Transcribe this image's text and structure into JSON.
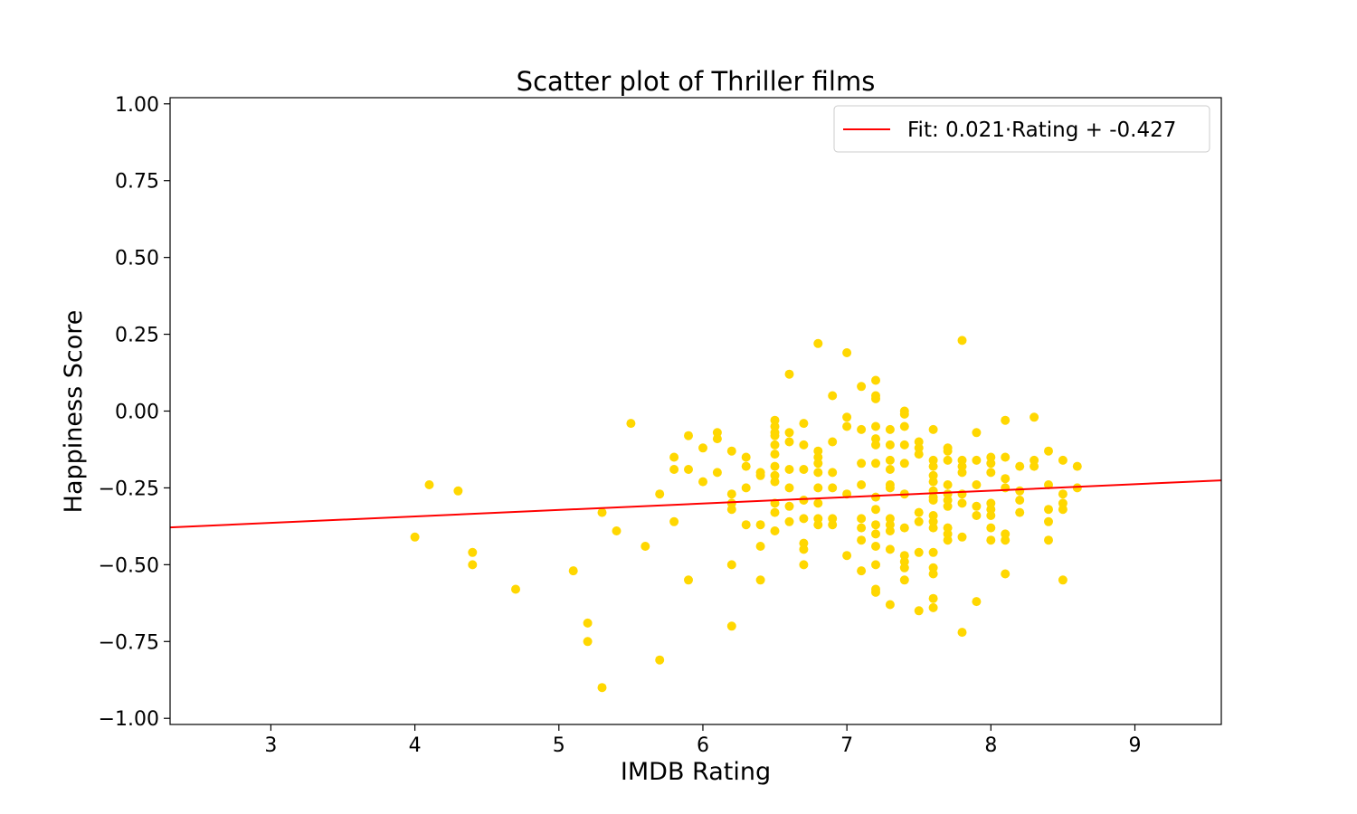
{
  "chart_data": {
    "type": "scatter",
    "title": "Scatter plot of Thriller films",
    "xlabel": "IMDB Rating",
    "ylabel": "Happiness Score",
    "xlim": [
      2.3,
      9.6
    ],
    "ylim": [
      -1.02,
      1.02
    ],
    "xticks": [
      3,
      4,
      5,
      6,
      7,
      8,
      9
    ],
    "xtick_labels": [
      "3",
      "4",
      "5",
      "6",
      "7",
      "8",
      "9"
    ],
    "yticks": [
      1.0,
      0.75,
      0.5,
      0.25,
      0.0,
      -0.25,
      -0.5,
      -0.75,
      -1.0
    ],
    "ytick_labels": [
      "1.00",
      "0.75",
      "0.50",
      "0.25",
      "0.00",
      "−0.25",
      "−0.50",
      "−0.75",
      "−1.00"
    ],
    "grid": false,
    "legend_position": "top-right",
    "colors": {
      "points": "#FFD700",
      "fit_line": "#FF0000"
    },
    "fit_line": {
      "label": "Fit: 0.021·Rating + -0.427",
      "slope": 0.021,
      "intercept": -0.427
    },
    "points": [
      [
        4.0,
        -0.41
      ],
      [
        4.1,
        -0.24
      ],
      [
        4.3,
        -0.26
      ],
      [
        4.4,
        -0.46
      ],
      [
        4.4,
        -0.5
      ],
      [
        4.7,
        -0.58
      ],
      [
        5.1,
        -0.52
      ],
      [
        5.2,
        -0.69
      ],
      [
        5.2,
        -0.75
      ],
      [
        5.3,
        -0.33
      ],
      [
        5.3,
        -0.9
      ],
      [
        5.4,
        -0.39
      ],
      [
        5.5,
        -0.04
      ],
      [
        5.6,
        -0.44
      ],
      [
        5.7,
        -0.27
      ],
      [
        5.7,
        -0.81
      ],
      [
        5.8,
        -0.15
      ],
      [
        5.8,
        -0.19
      ],
      [
        5.8,
        -0.36
      ],
      [
        5.9,
        -0.08
      ],
      [
        5.9,
        -0.19
      ],
      [
        5.9,
        -0.55
      ],
      [
        6.0,
        -0.12
      ],
      [
        6.0,
        -0.23
      ],
      [
        6.1,
        -0.07
      ],
      [
        6.1,
        -0.09
      ],
      [
        6.1,
        -0.2
      ],
      [
        6.2,
        -0.13
      ],
      [
        6.2,
        -0.27
      ],
      [
        6.2,
        -0.3
      ],
      [
        6.2,
        -0.32
      ],
      [
        6.2,
        -0.5
      ],
      [
        6.2,
        -0.7
      ],
      [
        6.3,
        -0.15
      ],
      [
        6.3,
        -0.18
      ],
      [
        6.3,
        -0.25
      ],
      [
        6.3,
        -0.37
      ],
      [
        6.4,
        -0.2
      ],
      [
        6.4,
        -0.21
      ],
      [
        6.4,
        -0.37
      ],
      [
        6.4,
        -0.44
      ],
      [
        6.4,
        -0.55
      ],
      [
        6.5,
        -0.03
      ],
      [
        6.5,
        -0.05
      ],
      [
        6.5,
        -0.07
      ],
      [
        6.5,
        -0.08
      ],
      [
        6.5,
        -0.11
      ],
      [
        6.5,
        -0.14
      ],
      [
        6.5,
        -0.18
      ],
      [
        6.5,
        -0.21
      ],
      [
        6.5,
        -0.23
      ],
      [
        6.5,
        -0.3
      ],
      [
        6.5,
        -0.33
      ],
      [
        6.5,
        -0.39
      ],
      [
        6.6,
        0.12
      ],
      [
        6.6,
        -0.07
      ],
      [
        6.6,
        -0.1
      ],
      [
        6.6,
        -0.19
      ],
      [
        6.6,
        -0.25
      ],
      [
        6.6,
        -0.31
      ],
      [
        6.6,
        -0.36
      ],
      [
        6.7,
        -0.04
      ],
      [
        6.7,
        -0.11
      ],
      [
        6.7,
        -0.19
      ],
      [
        6.7,
        -0.29
      ],
      [
        6.7,
        -0.35
      ],
      [
        6.7,
        -0.43
      ],
      [
        6.7,
        -0.45
      ],
      [
        6.7,
        -0.5
      ],
      [
        6.8,
        0.22
      ],
      [
        6.8,
        -0.13
      ],
      [
        6.8,
        -0.15
      ],
      [
        6.8,
        -0.17
      ],
      [
        6.8,
        -0.2
      ],
      [
        6.8,
        -0.25
      ],
      [
        6.8,
        -0.3
      ],
      [
        6.8,
        -0.35
      ],
      [
        6.8,
        -0.37
      ],
      [
        6.9,
        0.05
      ],
      [
        6.9,
        -0.1
      ],
      [
        6.9,
        -0.2
      ],
      [
        6.9,
        -0.25
      ],
      [
        6.9,
        -0.35
      ],
      [
        6.9,
        -0.37
      ],
      [
        7.0,
        0.19
      ],
      [
        7.0,
        -0.02
      ],
      [
        7.0,
        -0.05
      ],
      [
        7.0,
        -0.27
      ],
      [
        7.0,
        -0.47
      ],
      [
        7.1,
        0.08
      ],
      [
        7.1,
        -0.06
      ],
      [
        7.1,
        -0.17
      ],
      [
        7.1,
        -0.24
      ],
      [
        7.1,
        -0.35
      ],
      [
        7.1,
        -0.38
      ],
      [
        7.1,
        -0.42
      ],
      [
        7.1,
        -0.52
      ],
      [
        7.2,
        0.1
      ],
      [
        7.2,
        0.05
      ],
      [
        7.2,
        0.04
      ],
      [
        7.2,
        -0.05
      ],
      [
        7.2,
        -0.09
      ],
      [
        7.2,
        -0.11
      ],
      [
        7.2,
        -0.17
      ],
      [
        7.2,
        -0.28
      ],
      [
        7.2,
        -0.32
      ],
      [
        7.2,
        -0.37
      ],
      [
        7.2,
        -0.4
      ],
      [
        7.2,
        -0.44
      ],
      [
        7.2,
        -0.5
      ],
      [
        7.2,
        -0.58
      ],
      [
        7.2,
        -0.59
      ],
      [
        7.3,
        -0.06
      ],
      [
        7.3,
        -0.11
      ],
      [
        7.3,
        -0.16
      ],
      [
        7.3,
        -0.19
      ],
      [
        7.3,
        -0.24
      ],
      [
        7.3,
        -0.25
      ],
      [
        7.3,
        -0.35
      ],
      [
        7.3,
        -0.37
      ],
      [
        7.3,
        -0.39
      ],
      [
        7.3,
        -0.45
      ],
      [
        7.3,
        -0.63
      ],
      [
        7.4,
        0.0
      ],
      [
        7.4,
        -0.01
      ],
      [
        7.4,
        -0.05
      ],
      [
        7.4,
        -0.11
      ],
      [
        7.4,
        -0.17
      ],
      [
        7.4,
        -0.27
      ],
      [
        7.4,
        -0.38
      ],
      [
        7.4,
        -0.47
      ],
      [
        7.4,
        -0.49
      ],
      [
        7.4,
        -0.51
      ],
      [
        7.4,
        -0.55
      ],
      [
        7.5,
        -0.1
      ],
      [
        7.5,
        -0.12
      ],
      [
        7.5,
        -0.14
      ],
      [
        7.5,
        -0.33
      ],
      [
        7.5,
        -0.36
      ],
      [
        7.5,
        -0.46
      ],
      [
        7.5,
        -0.65
      ],
      [
        7.6,
        -0.06
      ],
      [
        7.6,
        -0.16
      ],
      [
        7.6,
        -0.18
      ],
      [
        7.6,
        -0.21
      ],
      [
        7.6,
        -0.23
      ],
      [
        7.6,
        -0.26
      ],
      [
        7.6,
        -0.28
      ],
      [
        7.6,
        -0.29
      ],
      [
        7.6,
        -0.34
      ],
      [
        7.6,
        -0.36
      ],
      [
        7.6,
        -0.38
      ],
      [
        7.6,
        -0.46
      ],
      [
        7.6,
        -0.51
      ],
      [
        7.6,
        -0.53
      ],
      [
        7.6,
        -0.61
      ],
      [
        7.6,
        -0.64
      ],
      [
        7.7,
        -0.12
      ],
      [
        7.7,
        -0.13
      ],
      [
        7.7,
        -0.16
      ],
      [
        7.7,
        -0.24
      ],
      [
        7.7,
        -0.27
      ],
      [
        7.7,
        -0.29
      ],
      [
        7.7,
        -0.31
      ],
      [
        7.7,
        -0.38
      ],
      [
        7.7,
        -0.4
      ],
      [
        7.7,
        -0.42
      ],
      [
        7.8,
        0.23
      ],
      [
        7.8,
        -0.16
      ],
      [
        7.8,
        -0.18
      ],
      [
        7.8,
        -0.2
      ],
      [
        7.8,
        -0.27
      ],
      [
        7.8,
        -0.3
      ],
      [
        7.8,
        -0.41
      ],
      [
        7.8,
        -0.72
      ],
      [
        7.9,
        -0.07
      ],
      [
        7.9,
        -0.16
      ],
      [
        7.9,
        -0.24
      ],
      [
        7.9,
        -0.31
      ],
      [
        7.9,
        -0.34
      ],
      [
        7.9,
        -0.62
      ],
      [
        8.0,
        -0.15
      ],
      [
        8.0,
        -0.17
      ],
      [
        8.0,
        -0.2
      ],
      [
        8.0,
        -0.3
      ],
      [
        8.0,
        -0.32
      ],
      [
        8.0,
        -0.34
      ],
      [
        8.0,
        -0.38
      ],
      [
        8.0,
        -0.42
      ],
      [
        8.1,
        -0.03
      ],
      [
        8.1,
        -0.15
      ],
      [
        8.1,
        -0.22
      ],
      [
        8.1,
        -0.25
      ],
      [
        8.1,
        -0.4
      ],
      [
        8.1,
        -0.42
      ],
      [
        8.1,
        -0.53
      ],
      [
        8.2,
        -0.18
      ],
      [
        8.2,
        -0.26
      ],
      [
        8.2,
        -0.29
      ],
      [
        8.2,
        -0.33
      ],
      [
        8.3,
        -0.02
      ],
      [
        8.3,
        -0.16
      ],
      [
        8.3,
        -0.18
      ],
      [
        8.4,
        -0.13
      ],
      [
        8.4,
        -0.24
      ],
      [
        8.4,
        -0.32
      ],
      [
        8.4,
        -0.36
      ],
      [
        8.4,
        -0.42
      ],
      [
        8.5,
        -0.16
      ],
      [
        8.5,
        -0.27
      ],
      [
        8.5,
        -0.3
      ],
      [
        8.5,
        -0.32
      ],
      [
        8.5,
        -0.55
      ],
      [
        8.6,
        -0.18
      ],
      [
        8.6,
        -0.25
      ]
    ]
  }
}
